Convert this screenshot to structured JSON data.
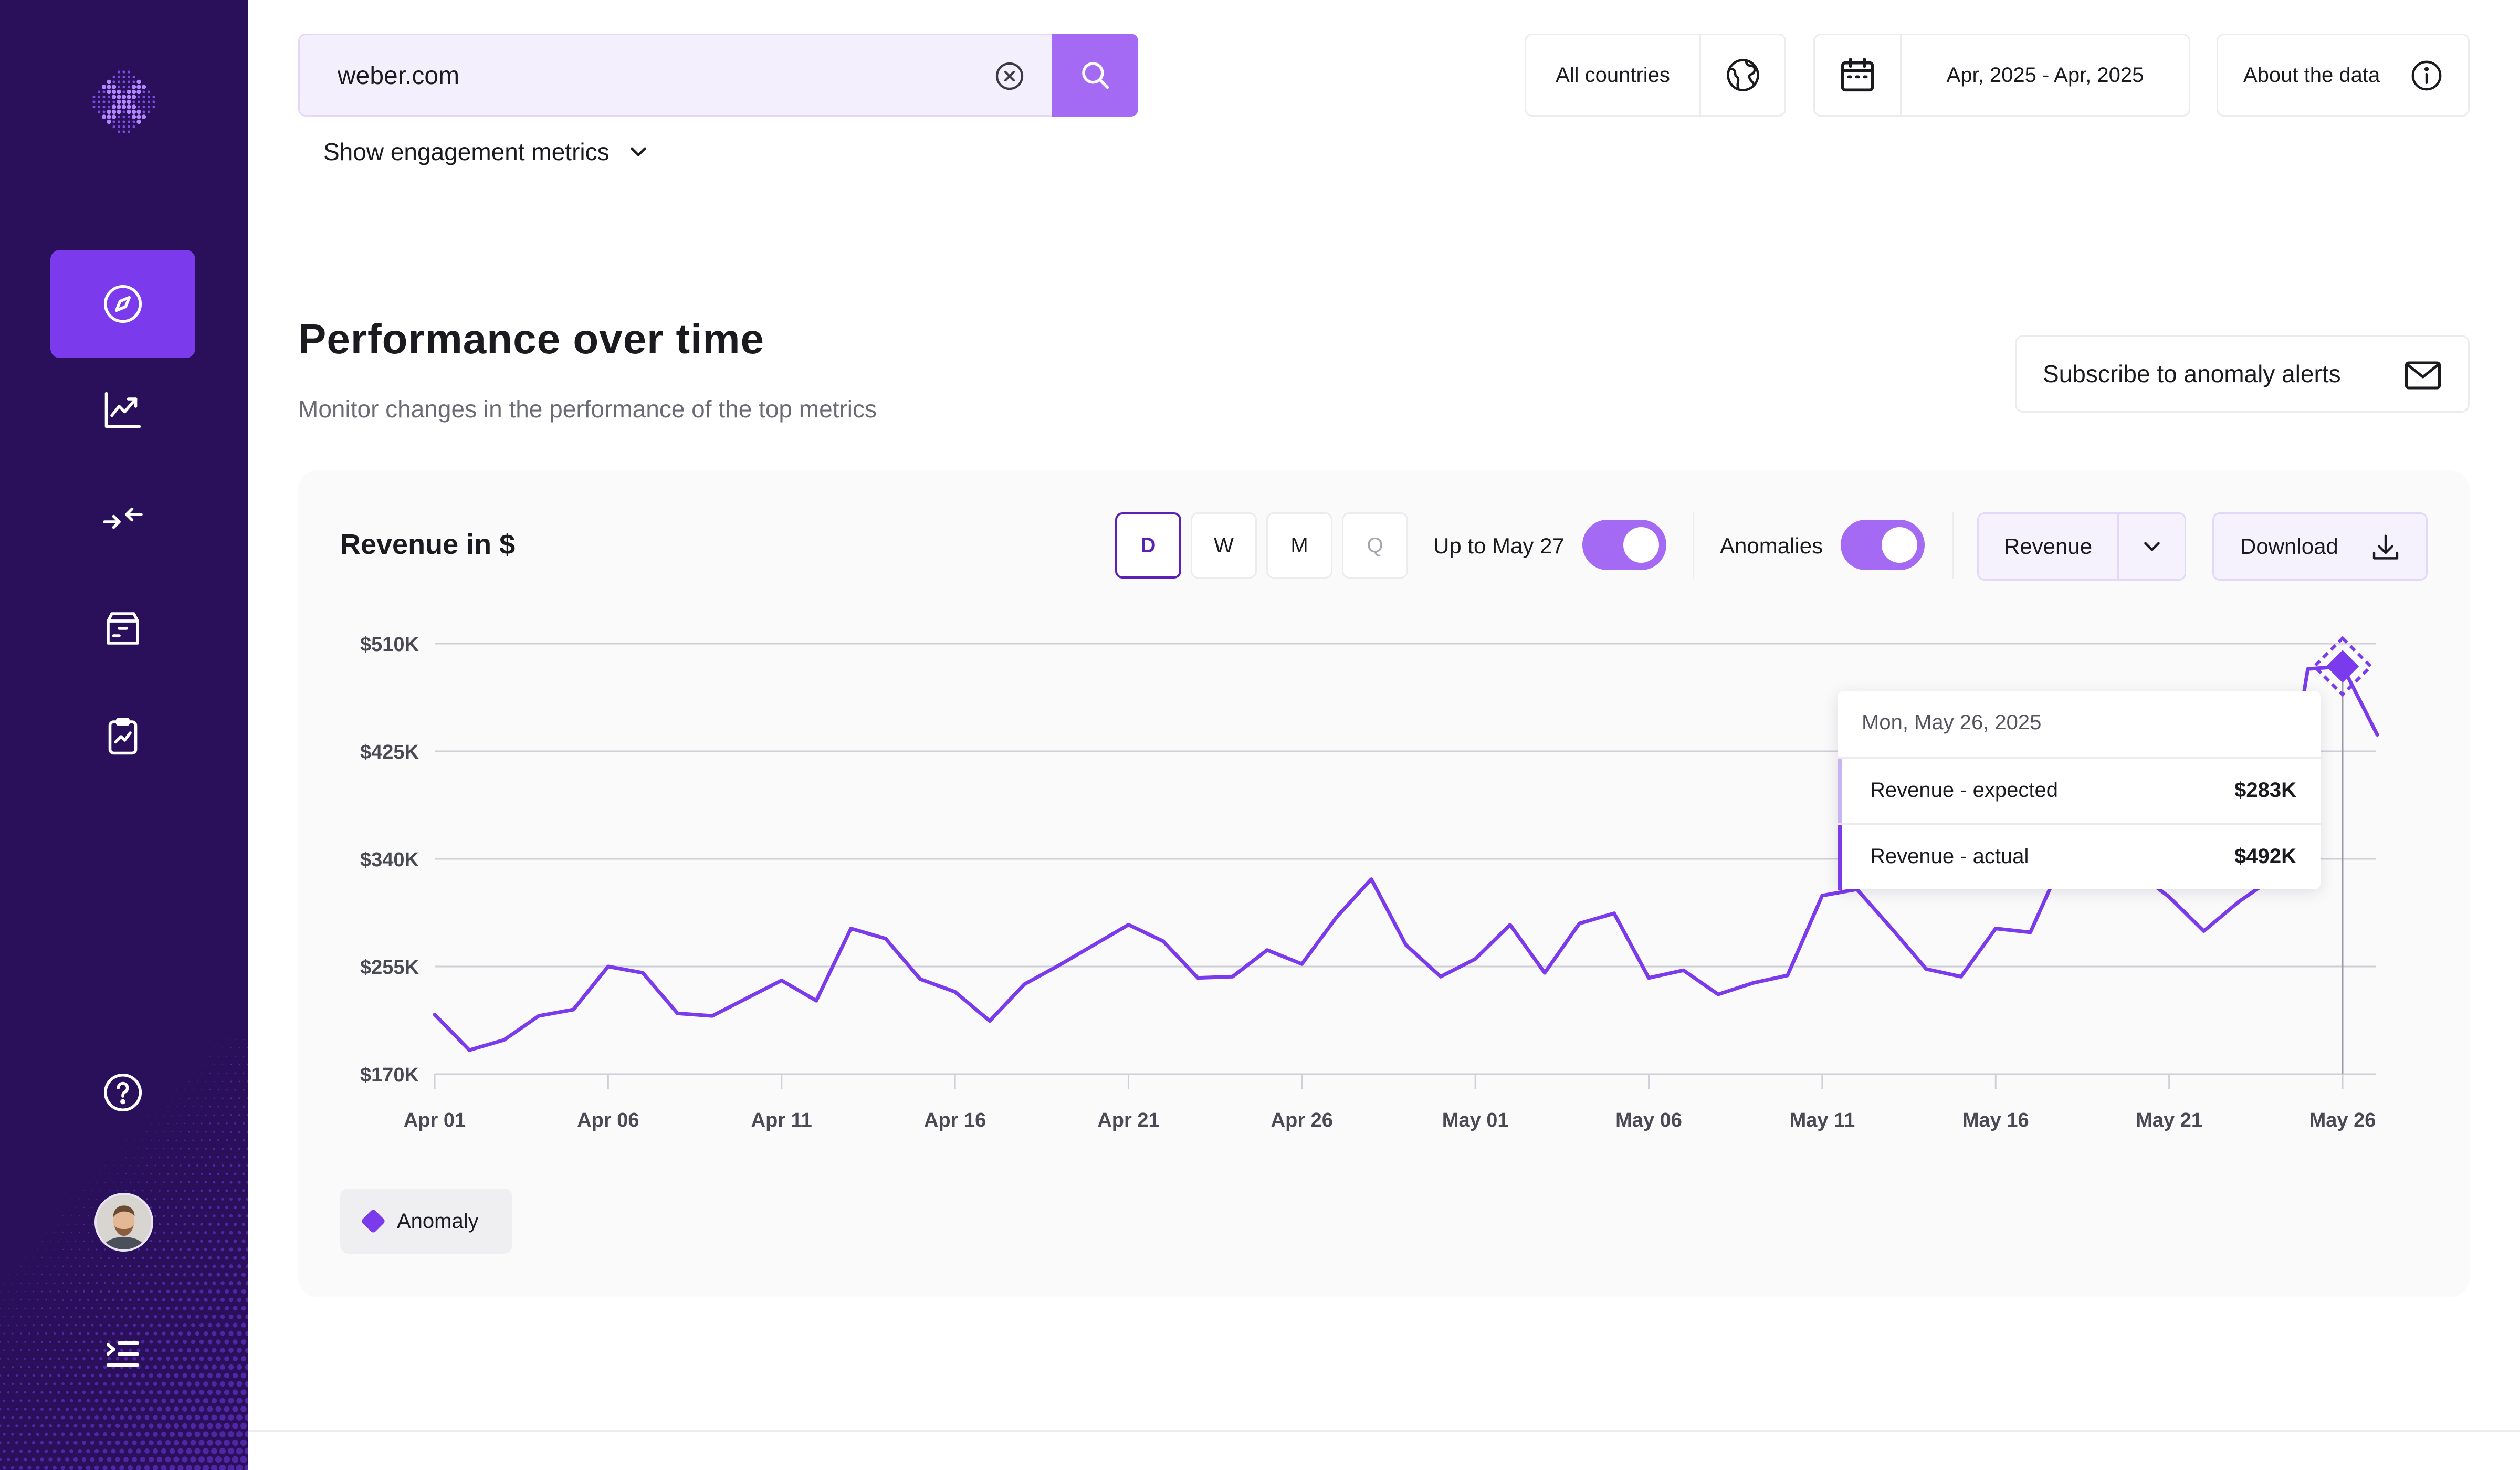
{
  "search": {
    "value": "weber.com"
  },
  "filters": {
    "country": "All countries",
    "date_range": "Apr, 2025 - Apr, 2025",
    "about": "About the data"
  },
  "engagement_toggle": "Show engagement metrics",
  "section": {
    "title": "Performance over time",
    "subtitle": "Monitor changes in the performance of the top metrics",
    "subscribe_label": "Subscribe to anomaly alerts"
  },
  "card": {
    "title": "Revenue in $",
    "frequencies": [
      "D",
      "W",
      "M",
      "Q"
    ],
    "active_frequency": "D",
    "up_to_label": "Up to May 27",
    "up_to_enabled": true,
    "anomalies_label": "Anomalies",
    "anomalies_enabled": true,
    "metric_select": "Revenue",
    "download_label": "Download",
    "legend_label": "Anomaly"
  },
  "tooltip": {
    "date": "Mon, May 26, 2025",
    "rows": [
      {
        "label": "Revenue - expected",
        "value": "$283K",
        "color": "#c9b3f5"
      },
      {
        "label": "Revenue - actual",
        "value": "$492K",
        "color": "#7c3aed"
      }
    ]
  },
  "colors": {
    "accent": "#7c3aed",
    "sidebar": "#2a0f5b",
    "button": "#a46af4"
  },
  "chart_data": {
    "type": "line",
    "y_ticks": [
      "$510K",
      "$425K",
      "$340K",
      "$255K",
      "$170K"
    ],
    "ylim": [
      170,
      510
    ],
    "x_tick_labels": [
      "Apr 01",
      "Apr 06",
      "Apr 11",
      "Apr 16",
      "Apr 21",
      "Apr 26",
      "May 01",
      "May 06",
      "May 11",
      "May 16",
      "May 21",
      "May 26"
    ],
    "x_tick_days": [
      0,
      5,
      10,
      15,
      20,
      25,
      30,
      35,
      40,
      45,
      50,
      55
    ],
    "grid": true,
    "series": [
      {
        "values": [
          217,
          189,
          197,
          216,
          221,
          255,
          250,
          218,
          216,
          230,
          244,
          228,
          285,
          277,
          245,
          235,
          212,
          241,
          256,
          272,
          288,
          275,
          246,
          247,
          268,
          257,
          294,
          324,
          272,
          247,
          261,
          288,
          250,
          289,
          297,
          246,
          252,
          233,
          242,
          248,
          311,
          316,
          285,
          253,
          247,
          285,
          282,
          343,
          347,
          331,
          310,
          283,
          306,
          325,
          490,
          492,
          438
        ]
      }
    ],
    "anomaly_day": 55
  }
}
